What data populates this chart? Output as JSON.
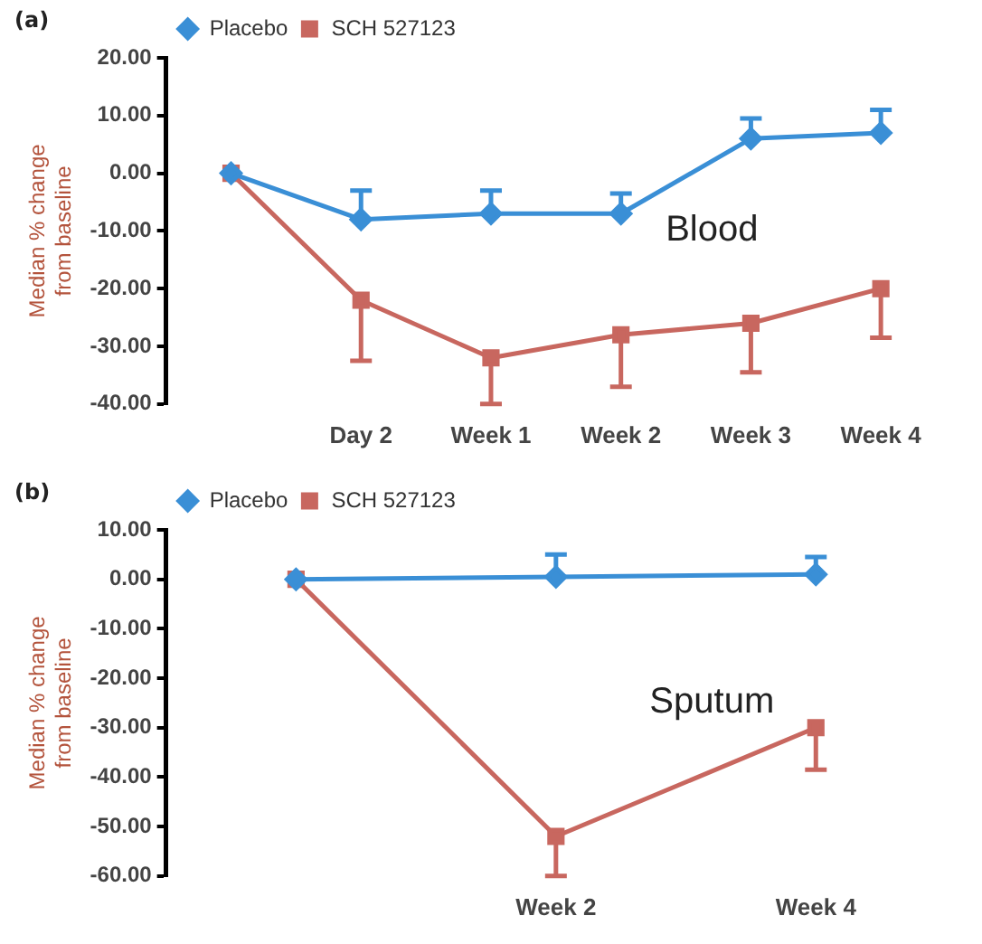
{
  "chart_data": [
    {
      "type": "line",
      "annotations": [
        "(a)",
        "Blood"
      ],
      "ylabel": "Median % change\nfrom baseline",
      "categories": [
        null,
        "Day 2",
        "Week 1",
        "Week 2",
        "Week 3",
        "Week 4"
      ],
      "ylim": [
        -40,
        20
      ],
      "yticks": [
        {
          "value": -40,
          "label": "-40.00"
        },
        {
          "value": -30,
          "label": "-30.00"
        },
        {
          "value": -20,
          "label": "-20.00"
        },
        {
          "value": -10,
          "label": "-10.00"
        },
        {
          "value": 0,
          "label": "0.00"
        },
        {
          "value": 10,
          "label": "10.00"
        },
        {
          "value": 20,
          "label": "20.00"
        }
      ],
      "grid": false,
      "legend": "top left",
      "series": [
        {
          "name": "Placebo",
          "color": "#3a8fd6",
          "marker": "diamond",
          "values": [
            0,
            -8,
            -7,
            -7,
            6,
            7
          ],
          "errors": [
            null,
            [
              -8,
              -3
            ],
            [
              -7,
              -3
            ],
            [
              -7,
              -3.5
            ],
            [
              6,
              9.5
            ],
            [
              7,
              11
            ]
          ]
        },
        {
          "name": "SCH 527123",
          "color": "#c8675f",
          "marker": "square",
          "values": [
            0,
            -22,
            -32,
            -28,
            -26,
            -20
          ],
          "errors": [
            null,
            [
              -32.5,
              -22
            ],
            [
              -40,
              -32
            ],
            [
              -37,
              -28
            ],
            [
              -34.5,
              -26
            ],
            [
              -28.5,
              -20
            ]
          ]
        }
      ]
    },
    {
      "type": "line",
      "annotations": [
        "(b)",
        "Sputum"
      ],
      "ylabel": "Median % change\nfrom baseline",
      "categories": [
        null,
        "Week 2",
        "Week 4"
      ],
      "ylim": [
        -60,
        10
      ],
      "yticks": [
        {
          "value": -60,
          "label": "-60.00"
        },
        {
          "value": -50,
          "label": "-50.00"
        },
        {
          "value": -40,
          "label": "-40.00"
        },
        {
          "value": -30,
          "label": "-30.00"
        },
        {
          "value": -20,
          "label": "-20.00"
        },
        {
          "value": -10,
          "label": "-10.00"
        },
        {
          "value": 0,
          "label": "0.00"
        },
        {
          "value": 10,
          "label": "10.00"
        }
      ],
      "grid": false,
      "legend": "top left",
      "series": [
        {
          "name": "Placebo",
          "color": "#3a8fd6",
          "marker": "diamond",
          "values": [
            0,
            0.5,
            1
          ],
          "errors": [
            null,
            [
              0.5,
              5
            ],
            [
              1,
              4.5
            ]
          ]
        },
        {
          "name": "SCH 527123",
          "color": "#c8675f",
          "marker": "square",
          "values": [
            0,
            -52,
            -30
          ],
          "errors": [
            null,
            [
              -60,
              -52
            ],
            [
              -38.5,
              -30
            ]
          ]
        }
      ]
    }
  ]
}
